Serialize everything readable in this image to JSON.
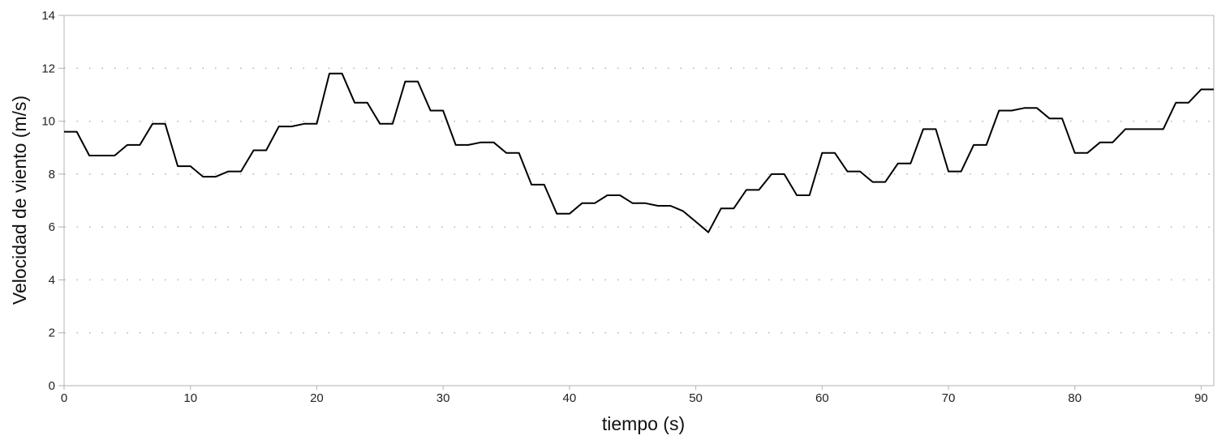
{
  "chart_data": {
    "type": "line",
    "title": "",
    "xlabel": "tiempo (s)",
    "ylabel": "Velocidad de viento (m/s)",
    "xlim": [
      0,
      91
    ],
    "ylim": [
      0,
      14
    ],
    "xticks": [
      0,
      10,
      20,
      30,
      40,
      50,
      60,
      70,
      80,
      90
    ],
    "yticks": [
      0,
      2,
      4,
      6,
      8,
      10,
      12,
      14
    ],
    "grid": "dotted-horizontal",
    "legend": "none",
    "line_color": "#000000",
    "grid_color": "#b3b3b3",
    "series": [
      {
        "x": [
          0,
          1,
          2,
          3,
          4,
          5,
          6,
          7,
          8,
          9,
          10,
          11,
          12,
          13,
          14,
          15,
          16,
          17,
          18,
          19,
          20,
          21,
          22,
          23,
          24,
          25,
          26,
          27,
          28,
          29,
          30,
          31,
          32,
          33,
          34,
          35,
          36,
          37,
          38,
          39,
          40,
          41,
          42,
          43,
          44,
          45,
          46,
          47,
          48,
          49,
          50,
          51,
          52,
          53,
          54,
          55,
          56,
          57,
          58,
          59,
          60,
          61,
          62,
          63,
          64,
          65,
          66,
          67,
          68,
          69,
          70,
          71,
          72,
          73,
          74,
          75,
          76,
          77,
          78,
          79,
          80,
          81,
          82,
          83,
          84,
          85,
          86,
          87,
          88,
          89,
          90,
          91
        ],
        "values": [
          9.6,
          9.6,
          8.7,
          8.7,
          8.7,
          9.1,
          9.1,
          9.9,
          9.9,
          8.3,
          8.3,
          7.9,
          7.9,
          8.1,
          8.1,
          8.9,
          8.9,
          9.8,
          9.8,
          9.9,
          9.9,
          11.8,
          11.8,
          10.7,
          10.7,
          9.9,
          9.9,
          11.5,
          11.5,
          10.4,
          10.4,
          9.1,
          9.1,
          9.2,
          9.2,
          8.8,
          8.8,
          7.6,
          7.6,
          6.5,
          6.5,
          6.9,
          6.9,
          7.2,
          7.2,
          6.9,
          6.9,
          6.8,
          6.8,
          6.6,
          6.2,
          5.8,
          6.7,
          6.7,
          7.4,
          7.4,
          8.0,
          8.0,
          7.2,
          7.2,
          8.8,
          8.8,
          8.1,
          8.1,
          7.7,
          7.7,
          8.4,
          8.4,
          9.7,
          9.7,
          8.1,
          8.1,
          9.1,
          9.1,
          10.4,
          10.4,
          10.5,
          10.5,
          10.1,
          10.1,
          8.8,
          8.8,
          9.2,
          9.2,
          9.7,
          9.7,
          9.7,
          9.7,
          10.7,
          10.7,
          11.2,
          11.2
        ]
      }
    ]
  }
}
